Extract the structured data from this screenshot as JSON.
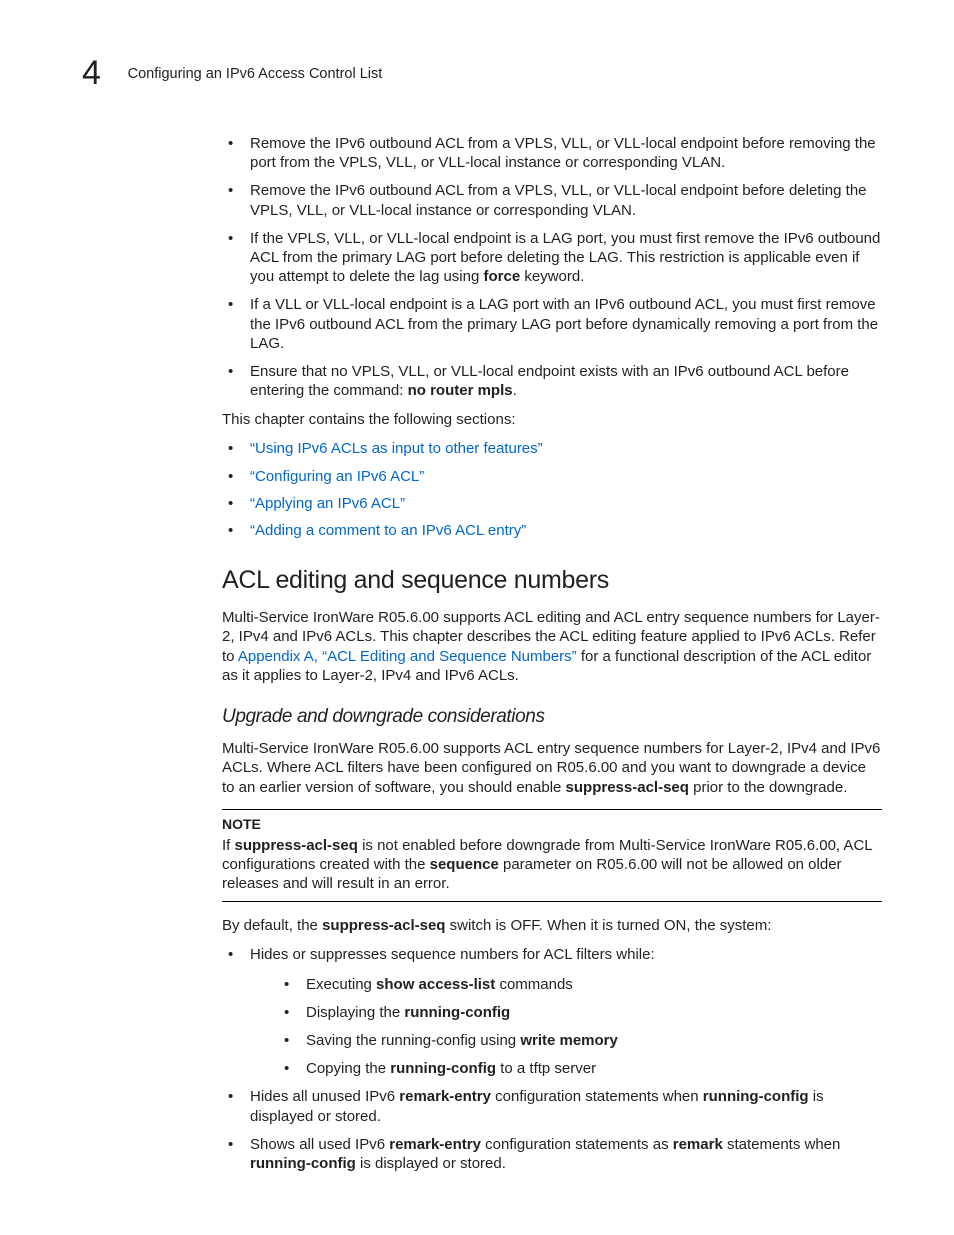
{
  "header": {
    "chapter_number": "4",
    "running_title": "Configuring an IPv6 Access Control List"
  },
  "intro_bullets": [
    {
      "text": "Remove the IPv6 outbound ACL from a VPLS, VLL, or VLL-local endpoint before removing the port from the VPLS, VLL, or VLL-local instance or corresponding VLAN."
    },
    {
      "text": "Remove the IPv6 outbound ACL from a VPLS, VLL, or VLL-local endpoint before deleting the VPLS, VLL, or VLL-local instance or corresponding VLAN."
    },
    {
      "pre": "If the VPLS, VLL, or VLL-local endpoint is a LAG port, you must first remove the IPv6 outbound ACL from the primary LAG port before deleting the LAG. This restriction is applicable even if you attempt to delete the lag using ",
      "bold": "force",
      "post": " keyword."
    },
    {
      "text": "If a VLL or VLL-local endpoint is a LAG port with an IPv6 outbound ACL, you must first remove the IPv6 outbound ACL from the primary LAG port before dynamically removing a port from the LAG."
    },
    {
      "pre": " Ensure that no VPLS, VLL, or VLL-local endpoint exists with an IPv6 outbound ACL before entering the command: ",
      "bold": "no router mpls",
      "post": "."
    }
  ],
  "sections_lead": "This chapter contains the following sections:",
  "section_links": [
    "“Using IPv6 ACLs as input to other features”",
    "“Configuring an IPv6 ACL”",
    "“Applying an IPv6 ACL”",
    "“Adding a comment to an IPv6 ACL entry”"
  ],
  "h2_title": "ACL editing and sequence numbers",
  "acl_edit_para": {
    "pre": "Multi-Service IronWare R05.6.00 supports ACL editing and ACL entry sequence numbers for Layer-2, IPv4 and IPv6 ACLs. This chapter describes the ACL editing feature applied to IPv6 ACLs. Refer to ",
    "link": "Appendix A, “ACL Editing and Sequence Numbers”",
    "post": " for a functional description of the ACL editor as it applies to Layer-2, IPv4 and IPv6 ACLs."
  },
  "h3_title": "Upgrade and downgrade considerations",
  "upgrade_para": {
    "pre": "Multi-Service IronWare R05.6.00 supports ACL entry sequence numbers for Layer-2, IPv4 and IPv6 ACLs. Where ACL filters have been configured on R05.6.00 and you want to downgrade a device to an earlier version of software, you should enable ",
    "bold": "suppress-acl-seq",
    "post": " prior to the downgrade."
  },
  "note": {
    "title": "NOTE",
    "p1a": "If ",
    "p1b": "suppress-acl-seq",
    "p1c": " is not enabled before downgrade from Multi-Service IronWare R05.6.00, ACL configurations created with the ",
    "p1d": "sequence",
    "p1e": " parameter on R05.6.00 will not be allowed on older releases and will result in an error."
  },
  "default_para": {
    "pre": "By default, the ",
    "bold": "suppress-acl-seq",
    "post": " switch is OFF. When it is turned ON, the system:"
  },
  "behavior_bullets": {
    "b1_text": "Hides or suppresses sequence numbers for ACL filters while:",
    "sub1_pre": "Executing ",
    "sub1_bold": "show access-list",
    "sub1_post": " commands",
    "sub2_pre": "Displaying the ",
    "sub2_bold": "running-config",
    "sub3_pre": "Saving the running-config using ",
    "sub3_bold": "write memory",
    "sub4_pre": "Copying the ",
    "sub4_bold": "running-config",
    "sub4_post": " to a tftp server",
    "b2_pre": "Hides all unused IPv6 ",
    "b2_bold1": "remark-entry",
    "b2_mid": " configuration statements when ",
    "b2_bold2": "running-config",
    "b2_post": " is displayed or stored.",
    "b3_pre": "Shows all used IPv6 ",
    "b3_bold1": "remark-entry",
    "b3_mid": " configuration statements as ",
    "b3_bold2": "remark",
    "b3_mid2": " statements when ",
    "b3_bold3": "running-config",
    "b3_post": " is displayed or stored."
  }
}
